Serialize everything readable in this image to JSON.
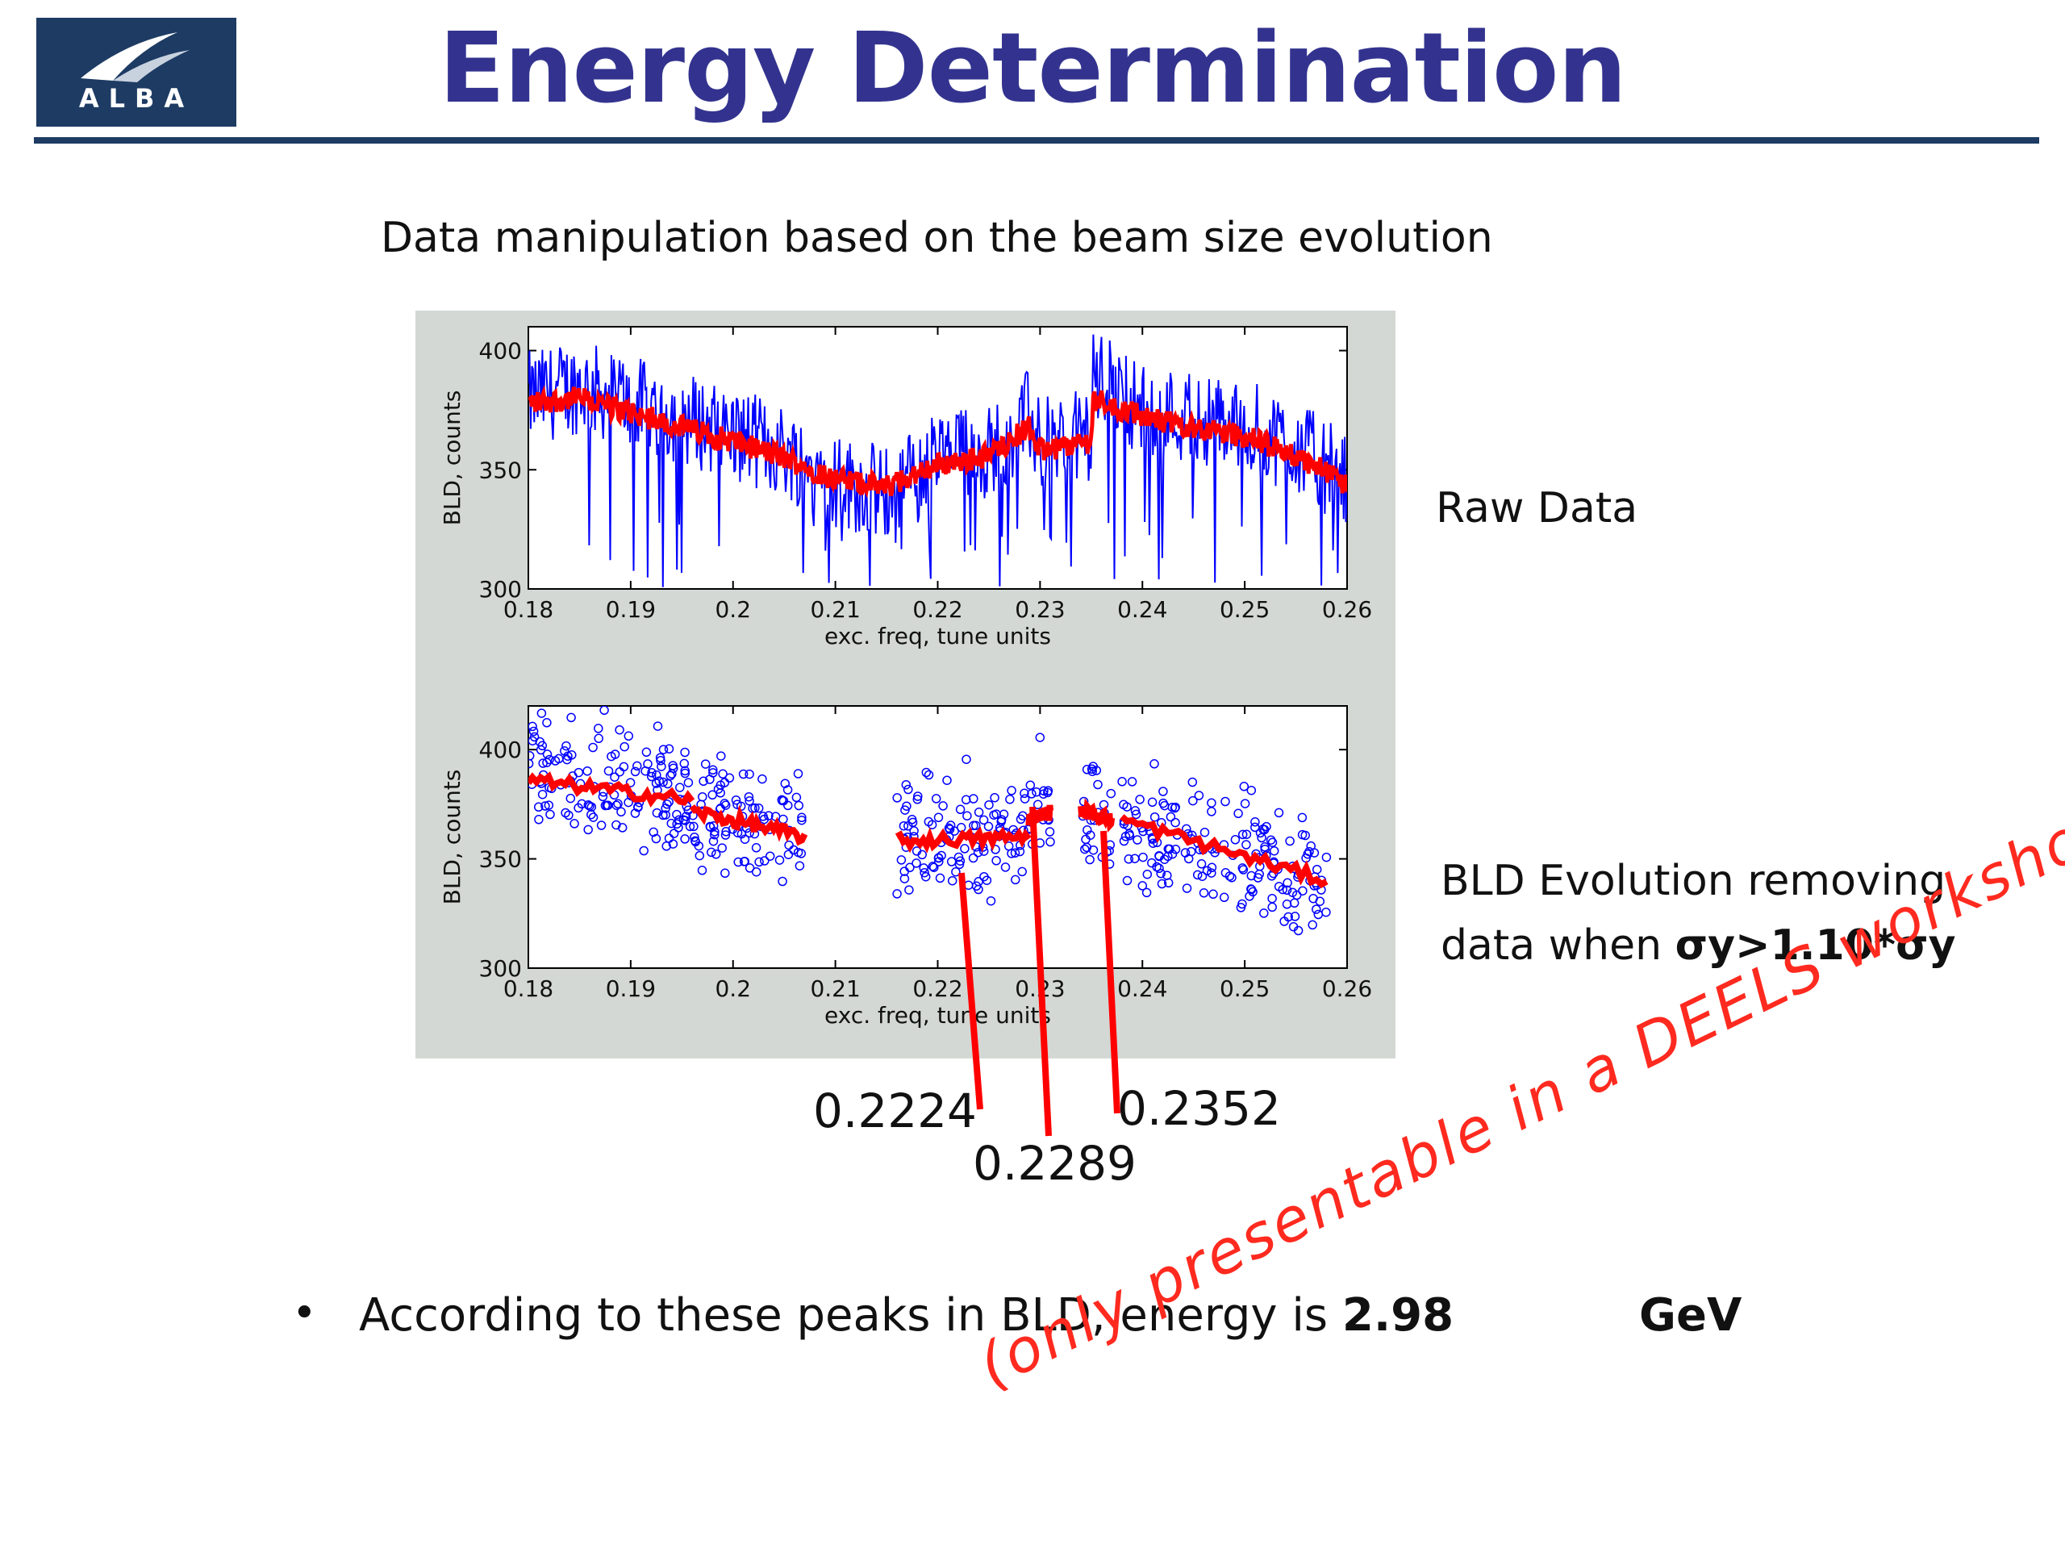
{
  "logo": {
    "text": "ALBA"
  },
  "title": "Energy Determination",
  "subtitle": "Data manipulation based on the beam size evolution",
  "labels": {
    "raw": "Raw Data",
    "evolution_line1": "BLD Evolution removing",
    "evolution_line2_prefix": "data when ",
    "evolution_line2_bold": "σy>1.10*σy"
  },
  "peaks": [
    "0.2224",
    "0.2289",
    "0.2352"
  ],
  "bullet": {
    "symbol": "•",
    "text": "According to these peaks in BLD, energy is ",
    "value_visible_start": "2.98",
    "value_visible_end": "GeV"
  },
  "stamp": "(only presentable in a DEELS workshop)",
  "colors": {
    "title": "#33338f",
    "header_bar": "#1d3b63",
    "plot_bg": "#d3d8d4",
    "raw": "#0000ff",
    "smooth": "#ff0000",
    "stamp": "#ff2a1f"
  },
  "chart_data": [
    {
      "type": "line",
      "xlabel": "exc. freq, tune units",
      "ylabel": "BLD, counts",
      "xlim": [
        0.18,
        0.26
      ],
      "ylim": [
        300,
        410
      ],
      "xticks": [
        "0.18",
        "0.19",
        "0.2",
        "0.21",
        "0.22",
        "0.23",
        "0.24",
        "0.25",
        "0.26"
      ],
      "yticks": [
        "300",
        "350",
        "400"
      ],
      "grid": false,
      "series": [
        {
          "color": "#0000ff",
          "x": [
            0.18,
            0.185,
            0.19,
            0.195,
            0.2,
            0.205,
            0.21,
            0.215,
            0.22,
            0.225,
            0.2289,
            0.23,
            0.235,
            0.2352,
            0.24,
            0.245,
            0.25,
            0.255,
            0.26
          ],
          "values": [
            380,
            385,
            378,
            372,
            365,
            358,
            345,
            340,
            355,
            358,
            372,
            360,
            365,
            390,
            375,
            372,
            368,
            360,
            345
          ]
        },
        {
          "color": "#ff0000",
          "x": [
            0.18,
            0.185,
            0.19,
            0.195,
            0.2,
            0.205,
            0.21,
            0.215,
            0.22,
            0.225,
            0.2289,
            0.23,
            0.235,
            0.2352,
            0.24,
            0.245,
            0.25,
            0.255,
            0.26
          ],
          "values": [
            378,
            380,
            374,
            368,
            362,
            355,
            346,
            343,
            352,
            356,
            368,
            358,
            362,
            380,
            372,
            368,
            364,
            356,
            344
          ]
        }
      ]
    },
    {
      "type": "scatter",
      "xlabel": "exc. freq, tune units",
      "ylabel": "BLD, counts",
      "xlim": [
        0.18,
        0.26
      ],
      "ylim": [
        300,
        420
      ],
      "xticks": [
        "0.18",
        "0.19",
        "0.2",
        "0.21",
        "0.22",
        "0.23",
        "0.24",
        "0.25",
        "0.26"
      ],
      "yticks": [
        "300",
        "350",
        "400"
      ],
      "grid": false,
      "segments": [
        {
          "x_range": [
            0.18,
            0.196
          ],
          "y_start": 386,
          "y_end": 377
        },
        {
          "x_range": [
            0.196,
            0.207
          ],
          "y_start": 372,
          "y_end": 360
        },
        {
          "x_range": [
            0.216,
            0.2289
          ],
          "y_start": 358,
          "y_end": 360
        },
        {
          "x_range": [
            0.2289,
            0.231
          ],
          "y_start": 368,
          "y_end": 372
        },
        {
          "x_range": [
            0.234,
            0.237
          ],
          "y_start": 372,
          "y_end": 368
        },
        {
          "x_range": [
            0.238,
            0.258
          ],
          "y_start": 368,
          "y_end": 340
        }
      ],
      "series": [
        {
          "color": "#0000ff"
        },
        {
          "color": "#ff0000"
        }
      ]
    }
  ]
}
